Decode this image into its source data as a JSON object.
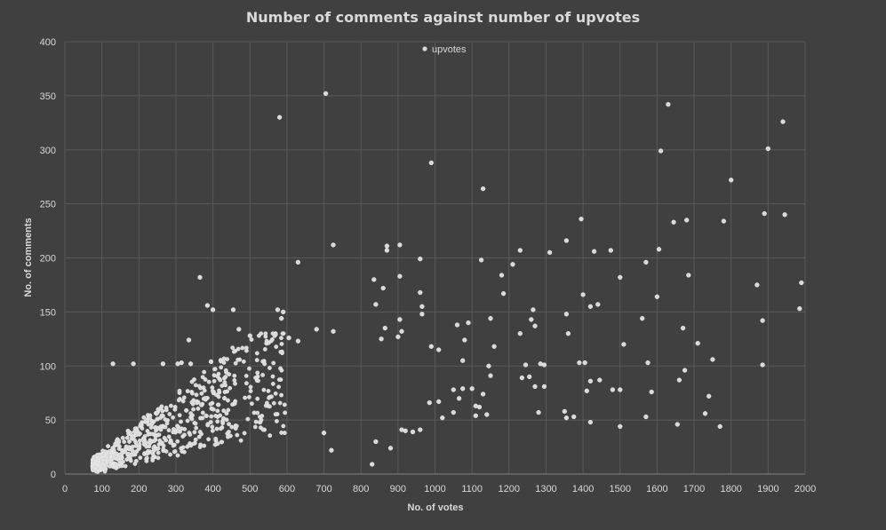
{
  "chart_data": {
    "type": "scatter",
    "title": "Number of comments against number of upvotes",
    "xlabel": "No. of votes",
    "ylabel": "No. of comments",
    "xlim": [
      0,
      2000
    ],
    "ylim": [
      0,
      400
    ],
    "xticks": [
      0,
      100,
      200,
      300,
      400,
      500,
      600,
      700,
      800,
      900,
      1000,
      1100,
      1200,
      1300,
      1400,
      1500,
      1600,
      1700,
      1800,
      1900,
      2000
    ],
    "yticks": [
      0,
      50,
      100,
      150,
      200,
      250,
      300,
      350,
      400
    ],
    "grid": true,
    "legend_position": "top-center",
    "colors": {
      "background": "#404040",
      "grid": "#595959",
      "point": "#d9d9d9",
      "text": "#d9d9d9"
    },
    "series": [
      {
        "name": "upvotes",
        "points": [
          [
            705,
            352
          ],
          [
            580,
            330
          ],
          [
            1630,
            342
          ],
          [
            1940,
            326
          ],
          [
            990,
            288
          ],
          [
            1610,
            299
          ],
          [
            1900,
            301
          ],
          [
            1800,
            272
          ],
          [
            1130,
            264
          ],
          [
            1890,
            241
          ],
          [
            1945,
            240
          ],
          [
            1395,
            236
          ],
          [
            1680,
            235
          ],
          [
            1645,
            233
          ],
          [
            1780,
            234
          ],
          [
            725,
            212
          ],
          [
            870,
            211
          ],
          [
            905,
            212
          ],
          [
            630,
            196
          ],
          [
            870,
            207
          ],
          [
            960,
            199
          ],
          [
            1230,
            207
          ],
          [
            1310,
            205
          ],
          [
            1355,
            216
          ],
          [
            1430,
            206
          ],
          [
            1475,
            207
          ],
          [
            1605,
            208
          ],
          [
            1125,
            198
          ],
          [
            1180,
            184
          ],
          [
            1210,
            194
          ],
          [
            1570,
            196
          ],
          [
            1685,
            184
          ],
          [
            365,
            182
          ],
          [
            835,
            180
          ],
          [
            905,
            183
          ],
          [
            960,
            168
          ],
          [
            1185,
            167
          ],
          [
            1400,
            166
          ],
          [
            1500,
            182
          ],
          [
            1600,
            164
          ],
          [
            1870,
            175
          ],
          [
            1990,
            177
          ],
          [
            385,
            156
          ],
          [
            400,
            152
          ],
          [
            455,
            152
          ],
          [
            575,
            152
          ],
          [
            590,
            150
          ],
          [
            585,
            144
          ],
          [
            840,
            157
          ],
          [
            860,
            172
          ],
          [
            965,
            155
          ],
          [
            965,
            148
          ],
          [
            905,
            143
          ],
          [
            1420,
            155
          ],
          [
            1440,
            157
          ],
          [
            1560,
            144
          ],
          [
            1885,
            142
          ],
          [
            1985,
            153
          ],
          [
            1150,
            144
          ],
          [
            1265,
            152
          ],
          [
            1355,
            148
          ],
          [
            1260,
            143
          ],
          [
            1270,
            137
          ],
          [
            1230,
            130
          ],
          [
            1360,
            130
          ],
          [
            680,
            134
          ],
          [
            725,
            132
          ],
          [
            630,
            123
          ],
          [
            605,
            126
          ],
          [
            545,
            121
          ],
          [
            500,
            128
          ],
          [
            470,
            134
          ],
          [
            335,
            124
          ],
          [
            395,
            104
          ],
          [
            315,
            103
          ],
          [
            340,
            102
          ],
          [
            900,
            127
          ],
          [
            910,
            132
          ],
          [
            855,
            125
          ],
          [
            865,
            135
          ],
          [
            1010,
            115
          ],
          [
            1080,
            124
          ],
          [
            1090,
            140
          ],
          [
            1060,
            138
          ],
          [
            1160,
            118
          ],
          [
            1510,
            120
          ],
          [
            1710,
            121
          ],
          [
            1670,
            135
          ],
          [
            130,
            102
          ],
          [
            185,
            102
          ],
          [
            265,
            102
          ],
          [
            305,
            102
          ],
          [
            1390,
            103
          ],
          [
            1405,
            103
          ],
          [
            1575,
            103
          ],
          [
            1675,
            96
          ],
          [
            1750,
            106
          ],
          [
            1885,
            101
          ],
          [
            1285,
            102
          ],
          [
            1295,
            101
          ],
          [
            1245,
            101
          ],
          [
            1145,
            100
          ],
          [
            1075,
            105
          ],
          [
            990,
            118
          ],
          [
            1150,
            91
          ],
          [
            1235,
            89
          ],
          [
            1255,
            90
          ],
          [
            1420,
            86
          ],
          [
            1445,
            87
          ],
          [
            1480,
            78
          ],
          [
            1500,
            78
          ],
          [
            1585,
            76
          ],
          [
            1660,
            87
          ],
          [
            1740,
            72
          ],
          [
            1270,
            81
          ],
          [
            1295,
            81
          ],
          [
            1100,
            79
          ],
          [
            1075,
            79
          ],
          [
            1050,
            78
          ],
          [
            1065,
            70
          ],
          [
            1110,
            63
          ],
          [
            1120,
            62
          ],
          [
            1130,
            74
          ],
          [
            985,
            66
          ],
          [
            1010,
            67
          ],
          [
            1020,
            52
          ],
          [
            1050,
            57
          ],
          [
            1110,
            54
          ],
          [
            1140,
            55
          ],
          [
            1350,
            58
          ],
          [
            1355,
            52
          ],
          [
            1375,
            53
          ],
          [
            1280,
            57
          ],
          [
            1410,
            77
          ],
          [
            1570,
            53
          ],
          [
            1730,
            56
          ],
          [
            1655,
            46
          ],
          [
            1500,
            44
          ],
          [
            1420,
            48
          ],
          [
            1770,
            44
          ],
          [
            830,
            9
          ],
          [
            880,
            24
          ],
          [
            700,
            38
          ],
          [
            720,
            22
          ],
          [
            940,
            39
          ],
          [
            920,
            40
          ],
          [
            960,
            41
          ],
          [
            910,
            41
          ],
          [
            840,
            30
          ]
        ]
      }
    ]
  },
  "legend": {
    "label": "upvotes"
  }
}
